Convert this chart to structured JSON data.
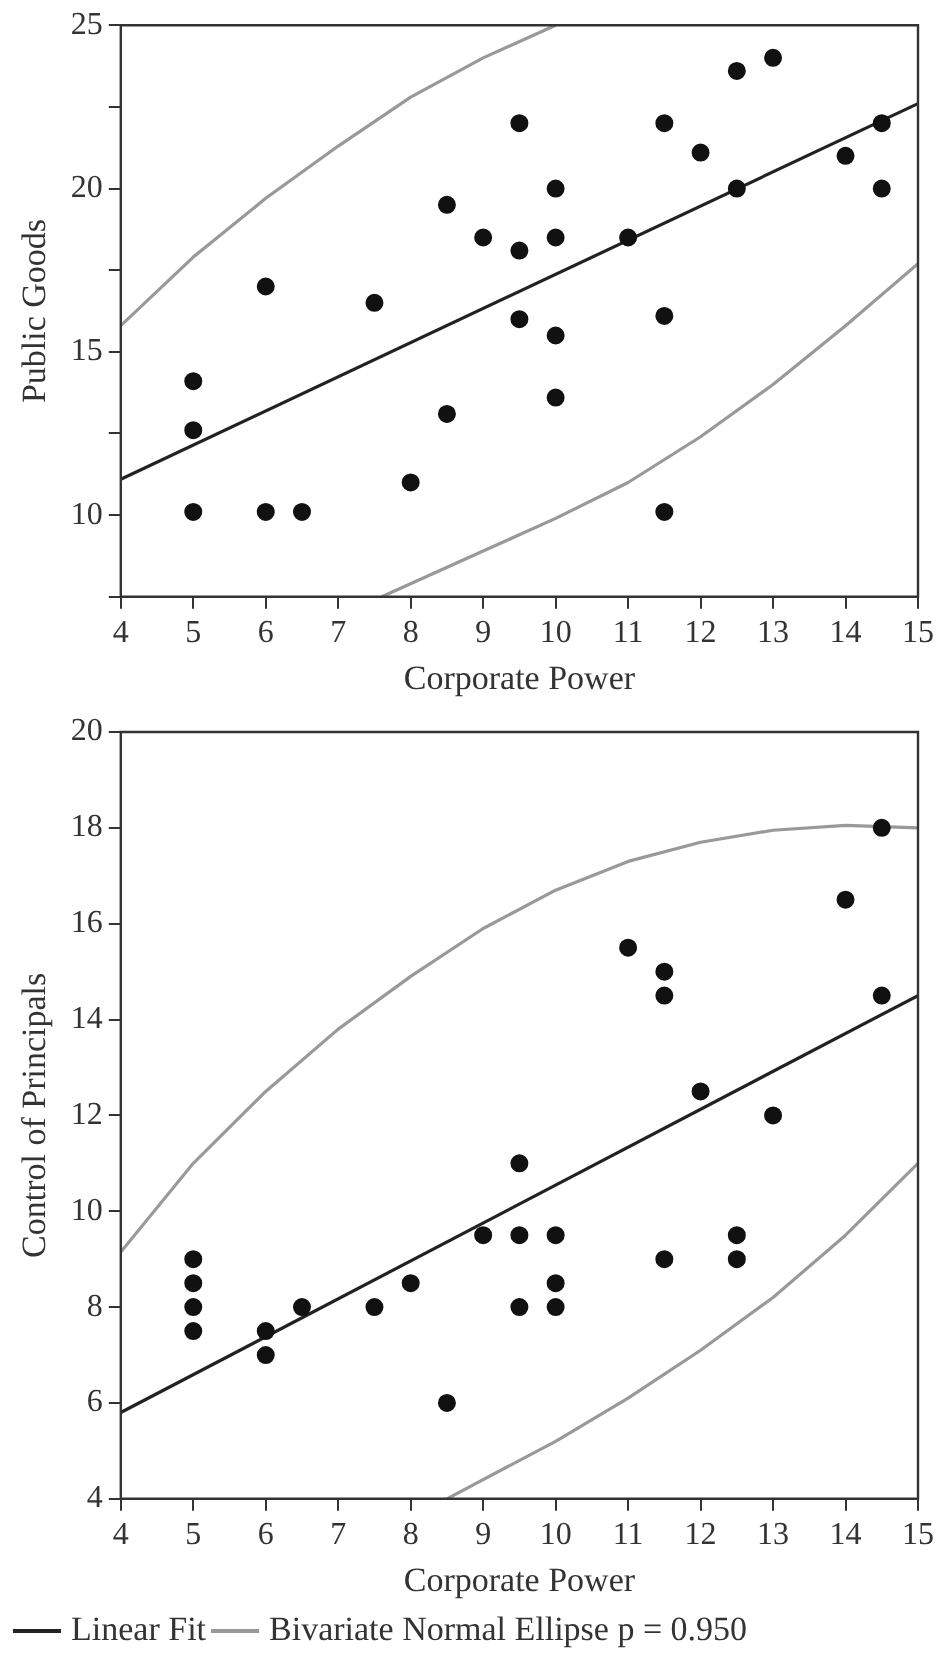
{
  "chart_data": [
    {
      "type": "scatter",
      "xlabel": "Corporate Power",
      "ylabel": "Public Goods",
      "xlim": [
        4,
        15
      ],
      "ylim": [
        7.5,
        25
      ],
      "xticks": [
        4,
        5,
        6,
        7,
        8,
        9,
        10,
        11,
        12,
        13,
        14,
        15
      ],
      "yticks": [
        {
          "value": 7.5,
          "label": null
        },
        10,
        {
          "value": 12.5,
          "label": null
        },
        15,
        {
          "value": 17.5,
          "label": null
        },
        20,
        {
          "value": 22.5,
          "label": null
        },
        25
      ],
      "grid": false,
      "legend": false,
      "series": [
        {
          "marker": "circle",
          "color": "#111111",
          "x": [
            5,
            5,
            5,
            6,
            6,
            6.5,
            7.5,
            8,
            8.5,
            8.5,
            9,
            9.5,
            9.5,
            9.5,
            10,
            10,
            10,
            10,
            11,
            11.5,
            11.5,
            11.5,
            12,
            12.5,
            12.5,
            13,
            14,
            14.5,
            14.5
          ],
          "values": [
            14.1,
            12.6,
            10.1,
            17,
            10.1,
            10.1,
            16.5,
            11,
            19.5,
            13.1,
            18.5,
            22,
            18.1,
            16,
            20,
            18.5,
            15.5,
            13.6,
            18.5,
            22,
            16.1,
            10.1,
            21.1,
            23.6,
            20,
            24,
            21,
            22,
            20
          ]
        },
        {
          "type": "line",
          "marker": "none",
          "color": "#222222",
          "x": [
            4,
            15
          ],
          "values": [
            11.1,
            22.6
          ]
        },
        {
          "type": "line",
          "marker": "none",
          "color": "#999999",
          "x": [
            4,
            5,
            6,
            7,
            8,
            9,
            10
          ],
          "values": [
            15.8,
            17.9,
            19.7,
            21.3,
            22.8,
            24,
            25
          ]
        },
        {
          "type": "line",
          "marker": "none",
          "color": "#999999",
          "x": [
            7.6,
            9,
            10,
            11,
            12,
            13,
            14,
            15
          ],
          "values": [
            7.5,
            8.9,
            9.9,
            11,
            12.4,
            14,
            15.8,
            17.7
          ]
        }
      ]
    },
    {
      "type": "scatter",
      "xlabel": "Corporate Power",
      "ylabel": "Control of Principals",
      "xlim": [
        4,
        15
      ],
      "ylim": [
        4,
        20
      ],
      "xticks": [
        4,
        5,
        6,
        7,
        8,
        9,
        10,
        11,
        12,
        13,
        14,
        15
      ],
      "yticks": [
        4,
        6,
        8,
        10,
        12,
        14,
        16,
        18,
        20
      ],
      "grid": false,
      "legend": "bottom",
      "series": [
        {
          "marker": "circle",
          "color": "#111111",
          "x": [
            5,
            5,
            5,
            5,
            6,
            6,
            6.5,
            7.5,
            8,
            8.5,
            9,
            9.5,
            9.5,
            9.5,
            10,
            10,
            10,
            11,
            11.5,
            11.5,
            11.5,
            12,
            12.5,
            12.5,
            13,
            14,
            14.5,
            14.5
          ],
          "values": [
            9,
            8.5,
            8,
            7.5,
            7.5,
            7,
            8,
            8,
            8.5,
            6,
            9.5,
            11,
            9.5,
            8,
            9.5,
            8.5,
            8,
            15.5,
            15,
            14.5,
            9,
            12.5,
            9.5,
            9,
            12,
            16.5,
            18,
            14.5
          ]
        },
        {
          "type": "line",
          "marker": "none",
          "name": "Linear Fit",
          "color": "#222222",
          "x": [
            4,
            15
          ],
          "values": [
            5.8,
            14.5
          ]
        },
        {
          "type": "line",
          "marker": "none",
          "name": "Bivariate Normal Ellipse p = 0.950",
          "color": "#999999",
          "x": [
            4,
            5,
            6,
            7,
            8,
            9,
            10,
            11,
            12,
            13,
            14,
            15
          ],
          "values": [
            9.15,
            11,
            12.5,
            13.8,
            14.9,
            15.9,
            16.7,
            17.3,
            17.7,
            17.95,
            18.05,
            18
          ]
        },
        {
          "type": "line",
          "marker": "none",
          "color": "#999999",
          "x": [
            8.5,
            10,
            11,
            12,
            13,
            14,
            15
          ],
          "values": [
            4,
            5.2,
            6.1,
            7.1,
            8.2,
            9.5,
            11
          ]
        }
      ]
    }
  ]
}
